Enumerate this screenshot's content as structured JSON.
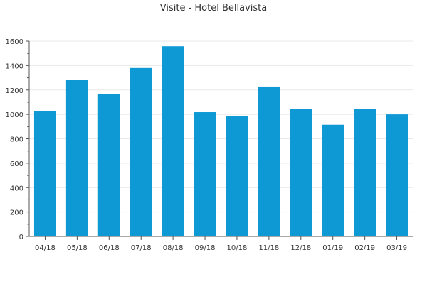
{
  "chart_data": {
    "type": "bar",
    "title": "Visite - Hotel Bellavista",
    "xlabel": "",
    "ylabel": "",
    "categories": [
      "04/18",
      "05/18",
      "06/18",
      "07/18",
      "08/18",
      "09/18",
      "10/18",
      "11/18",
      "12/18",
      "01/19",
      "02/19",
      "03/19"
    ],
    "values": [
      1030,
      1285,
      1165,
      1380,
      1558,
      1018,
      985,
      1228,
      1042,
      915,
      1042,
      1000
    ],
    "ylim": [
      0,
      1600
    ],
    "yticks": [
      0,
      200,
      400,
      600,
      800,
      1000,
      1200,
      1400,
      1600
    ],
    "grid": true,
    "legend": "none",
    "colors": {
      "bar": "#0e98d4",
      "grid": "#e8e8e8",
      "axis": "#555555",
      "text": "#333333"
    }
  }
}
